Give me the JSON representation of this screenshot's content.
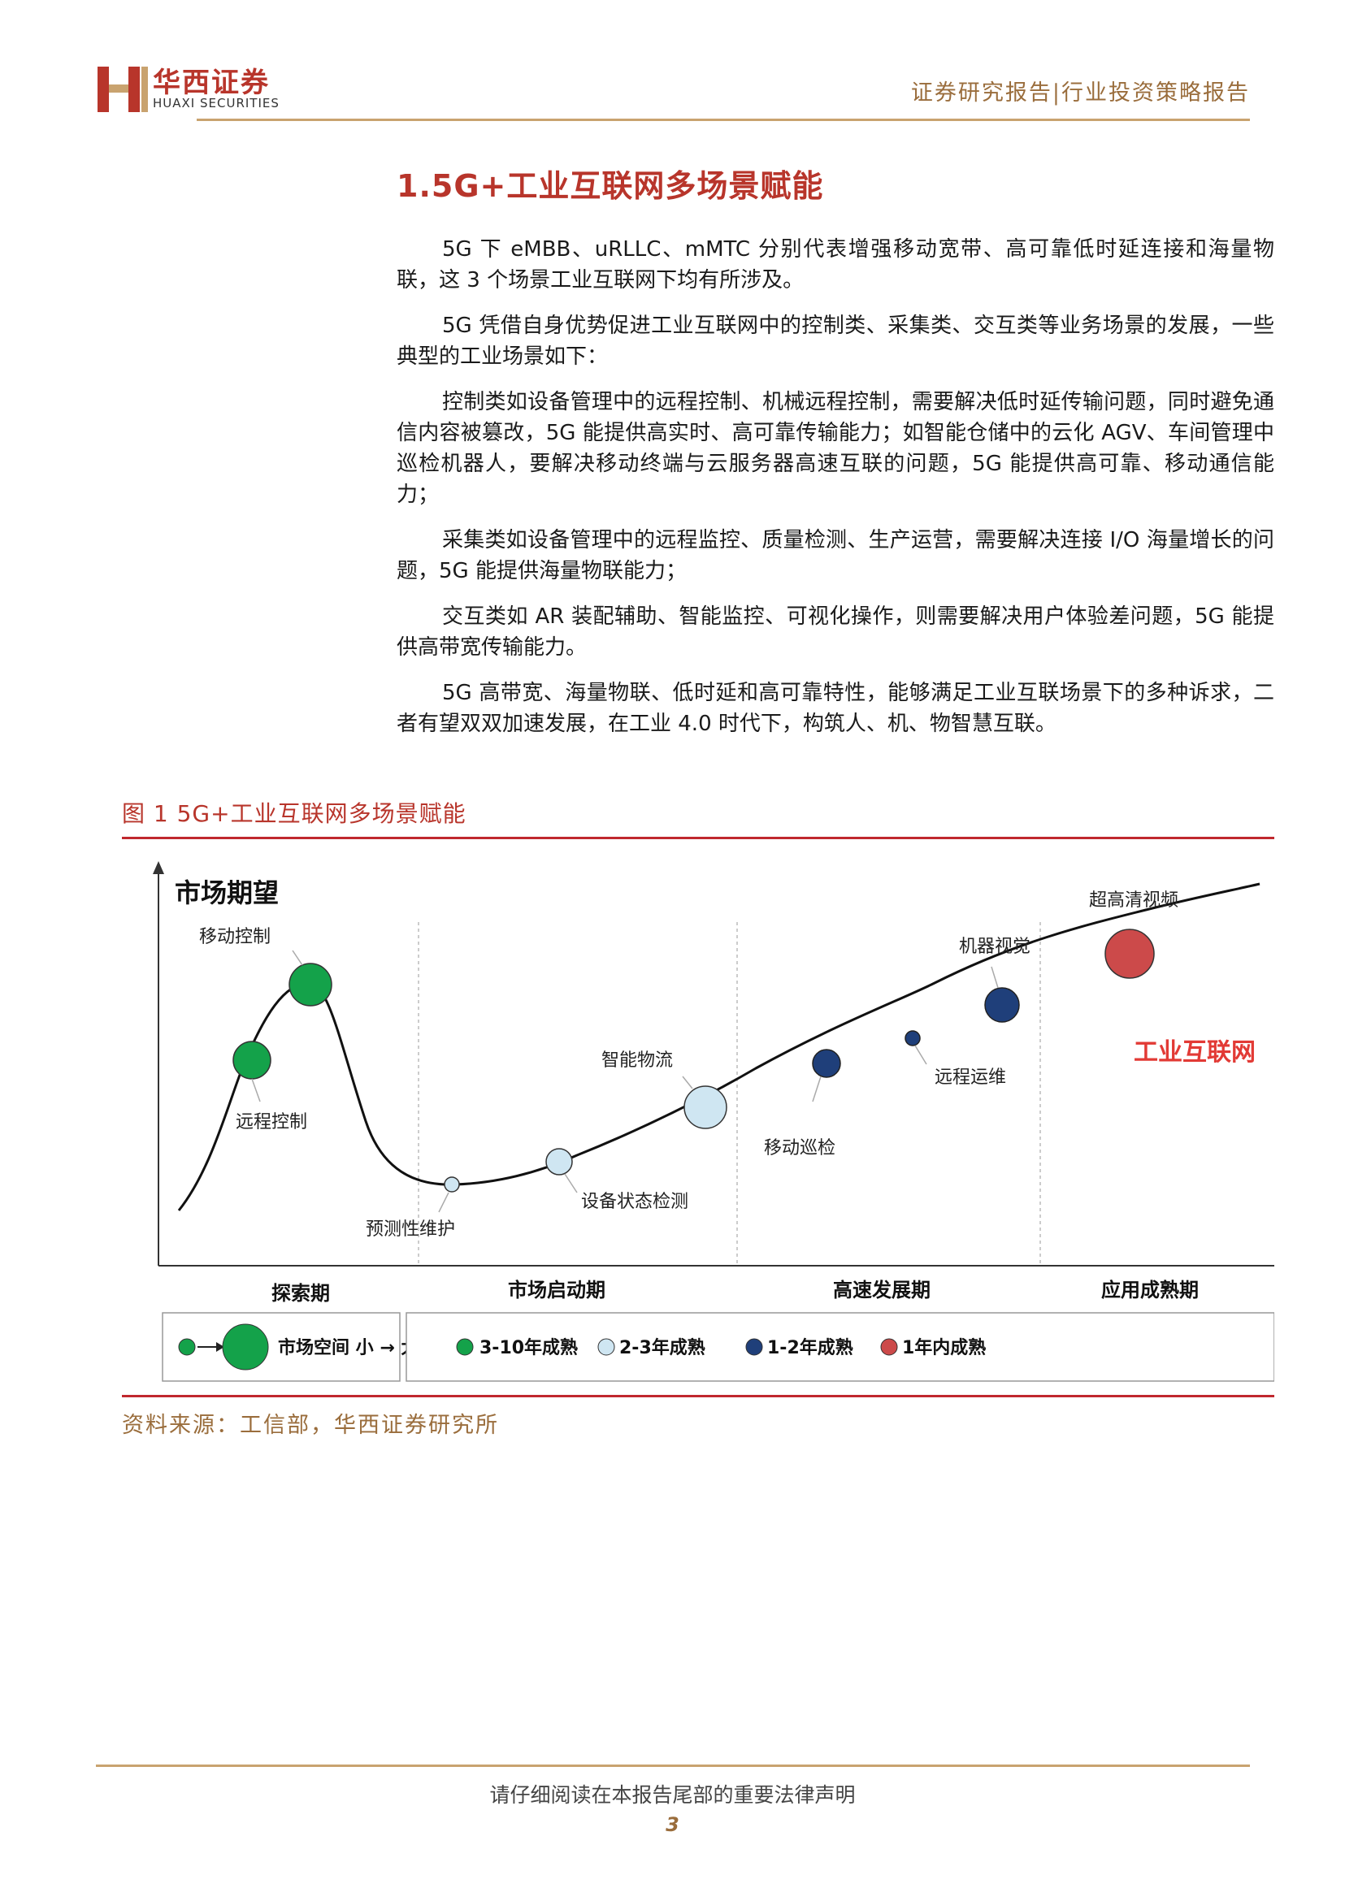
{
  "header": {
    "brand_cn": "华西证券",
    "brand_en": "HUAXI SECURITIES",
    "report_type": "证券研究报告|行业投资策略报告"
  },
  "section": {
    "title": "1.5G+工业互联网多场景赋能",
    "paragraphs": [
      "5G 下 eMBB、uRLLC、mMTC 分别代表增强移动宽带、高可靠低时延连接和海量物联，这 3 个场景工业互联网下均有所涉及。",
      "5G 凭借自身优势促进工业互联网中的控制类、采集类、交互类等业务场景的发展，一些典型的工业场景如下：",
      "控制类如设备管理中的远程控制、机械远程控制，需要解决低时延传输问题，同时避免通信内容被篡改，5G 能提供高实时、高可靠传输能力；如智能仓储中的云化 AGV、车间管理中巡检机器人，要解决移动终端与云服务器高速互联的问题，5G 能提供高可靠、移动通信能力；",
      "采集类如设备管理中的远程监控、质量检测、生产运营，需要解决连接 I/O 海量增长的问题，5G 能提供海量物联能力；",
      "交互类如 AR 装配辅助、智能监控、可视化操作，则需要解决用户体验差问题，5G 能提供高带宽传输能力。",
      "5G 高带宽、海量物联、低时延和高可靠特性，能够满足工业互联场景下的多种诉求，二者有望双双加速发展，在工业 4.0 时代下，构筑人、机、物智慧互联。"
    ]
  },
  "figure": {
    "caption": "图 1   5G+工业互联网多场景赋能",
    "y_axis_label": "市场期望",
    "series_label": "工业互联网",
    "phases": [
      "探索期",
      "市场启动期",
      "高速发展期",
      "应用成熟期"
    ],
    "points": [
      {
        "label": "远程控制",
        "maturity": "3-10年成熟",
        "size": "medium"
      },
      {
        "label": "移动控制",
        "maturity": "3-10年成熟",
        "size": "large"
      },
      {
        "label": "预测性维护",
        "maturity": "2-3年成熟",
        "size": "small"
      },
      {
        "label": "设备状态检测",
        "maturity": "2-3年成熟",
        "size": "medium-small"
      },
      {
        "label": "智能物流",
        "maturity": "2-3年成熟",
        "size": "large"
      },
      {
        "label": "移动巡检",
        "maturity": "1-2年成熟",
        "size": "medium"
      },
      {
        "label": "远程运维",
        "maturity": "1-2年成熟",
        "size": "small"
      },
      {
        "label": "机器视觉",
        "maturity": "1-2年成熟",
        "size": "medium"
      },
      {
        "label": "超高清视频",
        "maturity": "1年内成熟",
        "size": "large"
      }
    ],
    "legend_size": "市场空间 小 → 大",
    "legend_maturity": [
      {
        "label": "3-10年成熟",
        "color": "#14a24a"
      },
      {
        "label": "2-3年成熟",
        "color": "#cfe6f2"
      },
      {
        "label": "1-2年成熟",
        "color": "#1f3f7a"
      },
      {
        "label": "1年内成熟",
        "color": "#cc4a4a"
      }
    ],
    "source": "资料来源：工信部，华西证券研究所"
  },
  "footer": {
    "note": "请仔细阅读在本报告尾部的重要法律声明",
    "page": "3"
  }
}
